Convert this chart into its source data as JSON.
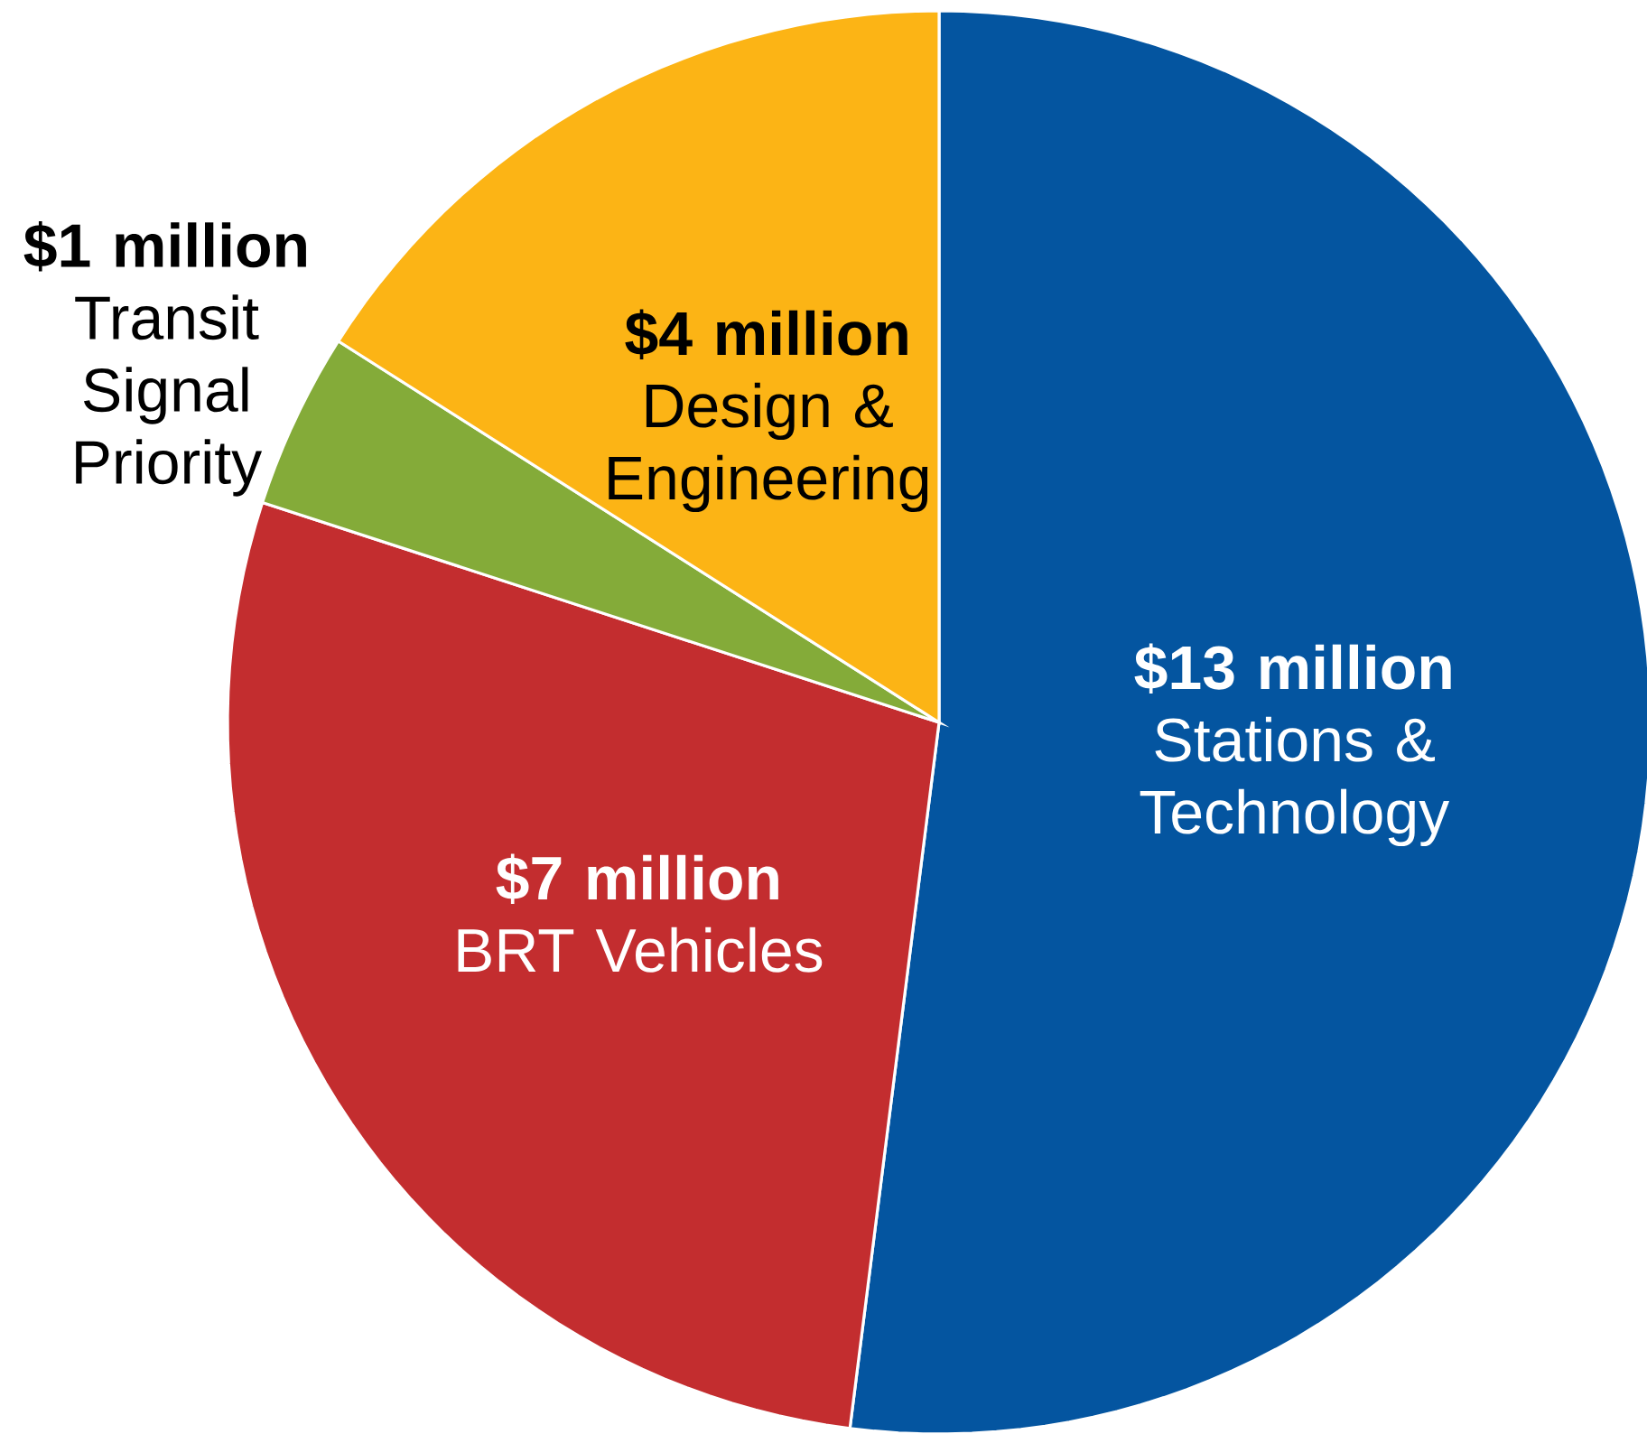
{
  "chart_data": {
    "type": "pie",
    "categories": [
      "Stations & Technology",
      "BRT Vehicles",
      "Transit Signal Priority",
      "Design & Engineering"
    ],
    "values": [
      13,
      7,
      1,
      4
    ],
    "colors": [
      "#0455a0",
      "#c32d2f",
      "#84ab39",
      "#fcb415"
    ],
    "value_labels": [
      "$13 million",
      "$7 million",
      "$1 million",
      "$4 million"
    ]
  }
}
